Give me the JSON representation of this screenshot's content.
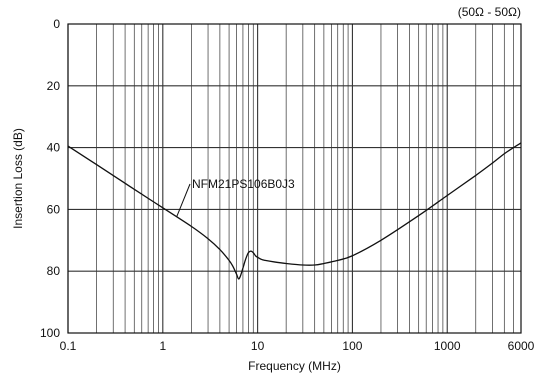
{
  "chart_data": {
    "type": "line",
    "title": "",
    "subtitle": "(50Ω - 50Ω)",
    "xlabel": "Frequency (MHz)",
    "ylabel": "Insertion Loss (dB)",
    "x_scale": "log",
    "xlim": [
      0.1,
      6000
    ],
    "ylim": [
      0,
      100
    ],
    "y_inverted": true,
    "grid": true,
    "x_ticks": [
      "0.1",
      "1",
      "10",
      "100",
      "1000",
      "6000"
    ],
    "y_ticks": [
      "0",
      "20",
      "40",
      "60",
      "80",
      "100"
    ],
    "series": [
      {
        "name": "NFM21PS106B0J3",
        "x": [
          0.1,
          0.2,
          0.5,
          1,
          2,
          3,
          4,
          5,
          5.5,
          6,
          6.3,
          6.6,
          7,
          7.5,
          8,
          8.5,
          9,
          9.5,
          10,
          11,
          12,
          15,
          20,
          30,
          40,
          50,
          70,
          100,
          200,
          500,
          1000,
          2000,
          3000,
          4000,
          5000,
          6000
        ],
        "y": [
          39.5,
          45.5,
          53.5,
          59.5,
          65.5,
          69.5,
          73,
          76.5,
          78.5,
          81,
          82.5,
          81.5,
          79,
          76,
          74,
          73.5,
          74,
          75,
          75.5,
          76.2,
          76.5,
          77,
          77.5,
          78,
          78,
          77.5,
          76.5,
          75,
          70,
          62,
          55.5,
          49,
          45,
          42,
          40,
          38.5
        ]
      }
    ],
    "annotations": [
      {
        "text": "NFM21PS106B0J3",
        "points_to_x": 1.4
      }
    ],
    "line_color": "#111111",
    "grid_color": "#333333"
  }
}
